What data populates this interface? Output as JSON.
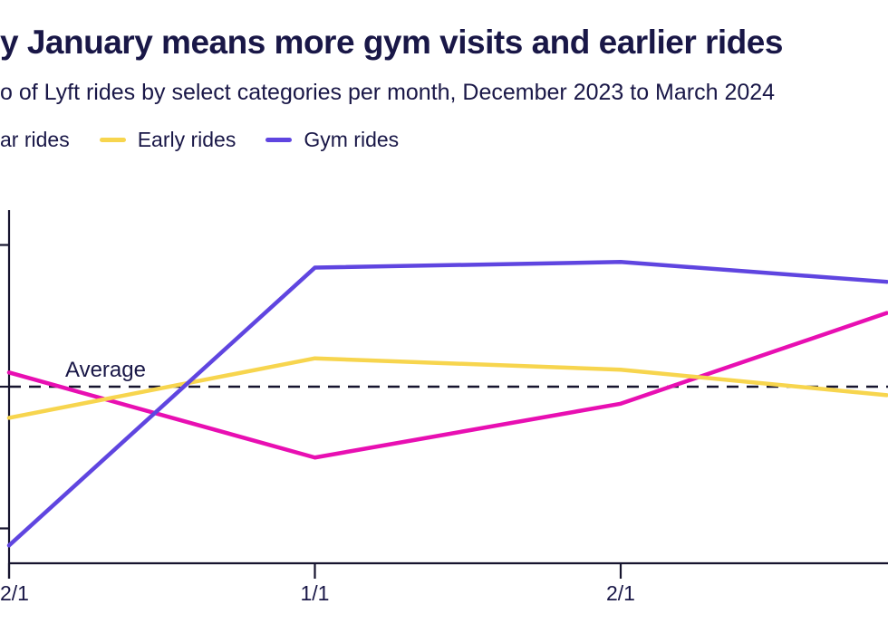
{
  "header": {
    "title": "y January means more gym visits and earlier rides",
    "subtitle": "o of Lyft rides by select categories per month, December 2023 to March 2024"
  },
  "legend": {
    "items": [
      {
        "label": "ar rides",
        "color": "#e80fb2"
      },
      {
        "label": "Early rides",
        "color": "#f7d54e"
      },
      {
        "label": "Gym rides",
        "color": "#5f45e0"
      }
    ]
  },
  "chart_data": {
    "type": "line",
    "title": "y January means more gym visits and earlier rides",
    "subtitle": "o of Lyft rides by select categories per month, December 2023 to March 2024",
    "x_tick_labels": [
      "2/1",
      "1/1",
      "2/1"
    ],
    "x_months": [
      0,
      1,
      2
    ],
    "average_label": "Average",
    "average_value": 100,
    "y_ticks_values": [
      150,
      100,
      50
    ],
    "y_axis_labels_visible": false,
    "grid": false,
    "legend_position": "top-left",
    "units": "relative ride index (estimated from unlabeled axis): average = 100, one y-tick interval = 50",
    "series": [
      {
        "name": "ar rides",
        "color": "#e80fb2",
        "points": [
          [
            0,
            105
          ],
          [
            1,
            75
          ],
          [
            2,
            94
          ],
          [
            2.87,
            126
          ]
        ]
      },
      {
        "name": "Early rides",
        "color": "#f7d54e",
        "points": [
          [
            0,
            89
          ],
          [
            1,
            110
          ],
          [
            2,
            106
          ],
          [
            2.87,
            97
          ]
        ]
      },
      {
        "name": "Gym rides",
        "color": "#5f45e0",
        "points": [
          [
            0,
            44
          ],
          [
            1,
            142
          ],
          [
            2,
            144
          ],
          [
            2.87,
            137
          ]
        ]
      }
    ]
  },
  "colors": {
    "text": "#191747",
    "axis": "#16142e",
    "average_line": "#16142e",
    "background": "#ffffff"
  }
}
